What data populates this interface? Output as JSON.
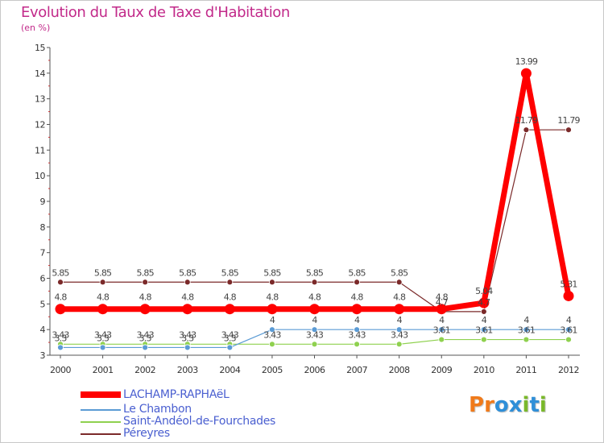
{
  "page": {
    "title": "Evolution du Taux de Taxe d'Habitation",
    "unit": "(en %)"
  },
  "brand": {
    "logo_text": "Proxiti",
    "logo_colors": [
      "#f07a1a",
      "#f07a1a",
      "#2f8fd8",
      "#2f8fd8",
      "#7ab82a",
      "#2f8fd8",
      "#7ab82a"
    ]
  },
  "chart_data": {
    "type": "line",
    "title": "Evolution du Taux de Taxe d'Habitation",
    "ylabel": "(en %)",
    "xlabel": "",
    "ylim": [
      3,
      15
    ],
    "yticks": [
      3,
      4,
      5,
      6,
      7,
      8,
      9,
      10,
      11,
      12,
      13,
      14,
      15
    ],
    "x": [
      "2000",
      "2001",
      "2002",
      "2003",
      "2004",
      "2005",
      "2006",
      "2007",
      "2008",
      "2009",
      "2010",
      "2011",
      "2012"
    ],
    "series": [
      {
        "name": "LACHAMP-RAPHAëL",
        "color": "#ff0000",
        "values": [
          4.8,
          4.8,
          4.8,
          4.8,
          4.8,
          4.8,
          4.8,
          4.8,
          4.8,
          4.8,
          5.04,
          13.99,
          5.31
        ],
        "labels": [
          "4.8",
          "4.8",
          "4.8",
          "4.8",
          "4.8",
          "4.8",
          "4.8",
          "4.8",
          "4.8",
          "4.8",
          "5.04",
          "13.99",
          "5.31"
        ]
      },
      {
        "name": "Le Chambon",
        "color": "#5b9bd5",
        "values": [
          3.3,
          3.3,
          3.3,
          3.3,
          3.3,
          4,
          4,
          4,
          4,
          4,
          4,
          4,
          4
        ],
        "labels": [
          "3.3",
          "3.3",
          "3.3",
          "3.3",
          "3.3",
          "4",
          "4",
          "4",
          "4",
          "4",
          "4",
          "4",
          "4"
        ]
      },
      {
        "name": "Saint-Andéol-de-Fourchades",
        "color": "#8fd14f",
        "values": [
          3.43,
          3.43,
          3.43,
          3.43,
          3.43,
          3.43,
          3.43,
          3.43,
          3.43,
          3.61,
          3.61,
          3.61,
          3.61
        ],
        "labels": [
          "3.43",
          "3.43",
          "3.43",
          "3.43",
          "3.43",
          "3.43",
          "3.43",
          "3.43",
          "3.43",
          "3.61",
          "3.61",
          "3.61",
          "3.61"
        ]
      },
      {
        "name": "Péreyres",
        "color": "#7b2a2a",
        "values": [
          5.85,
          5.85,
          5.85,
          5.85,
          5.85,
          5.85,
          5.85,
          5.85,
          5.85,
          4.7,
          4.7,
          11.79,
          11.79
        ],
        "labels": [
          "5.85",
          "5.85",
          "5.85",
          "5.85",
          "5.85",
          "5.85",
          "5.85",
          "5.85",
          "5.85",
          "4.7",
          "4.7",
          "11.79",
          "11.79"
        ]
      }
    ],
    "legend_position": "bottom-left",
    "grid": false
  }
}
